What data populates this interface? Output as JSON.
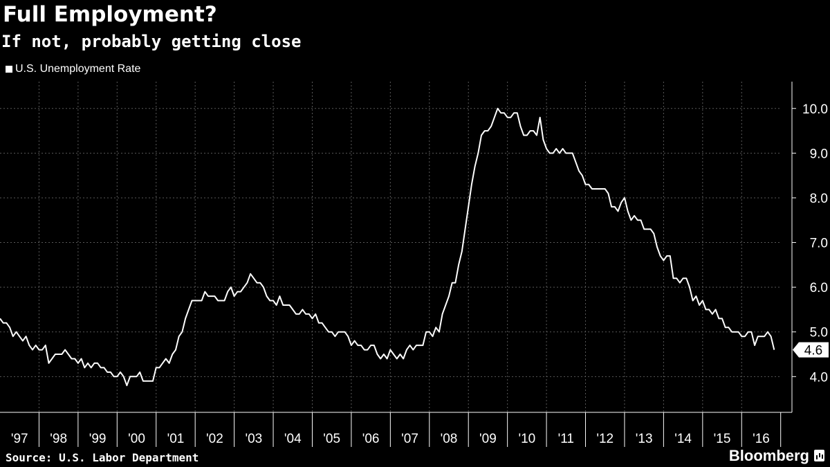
{
  "header": {
    "title": "Full Employment?",
    "subtitle": "If not, probably getting close"
  },
  "footer": {
    "source": "Source: U.S. Labor Department",
    "brand": "Bloomberg"
  },
  "colors": {
    "background": "#000000",
    "line": "#ffffff",
    "grid": "#5a5a5a"
  },
  "chart_data": {
    "type": "line",
    "title": "Full Employment?",
    "subtitle": "If not, probably getting close",
    "legend": {
      "position": "top-left",
      "entries": [
        "U.S. Unemployment Rate"
      ]
    },
    "grid": true,
    "y_axis_side": "right",
    "ylim": [
      3.2,
      10.6
    ],
    "yticks": [
      4.0,
      5.0,
      6.0,
      7.0,
      8.0,
      9.0,
      10.0
    ],
    "ytick_labels": [
      "4.0",
      "5.0",
      "6.0",
      "7.0",
      "8.0",
      "9.0",
      "10.0"
    ],
    "xlim": [
      1997.0,
      2016.97
    ],
    "xtick_labels": [
      "'97",
      "'98",
      "'99",
      "'00",
      "'01",
      "'02",
      "'03",
      "'04",
      "'05",
      "'06",
      "'07",
      "'08",
      "'09",
      "'10",
      "'11",
      "'12",
      "'13",
      "'14",
      "'15",
      "'16"
    ],
    "last_value_label": "4.6",
    "series": [
      {
        "name": "U.S. Unemployment Rate",
        "start": "1997-01",
        "frequency": "monthly",
        "values": [
          5.3,
          5.2,
          5.2,
          5.1,
          4.9,
          5.0,
          4.9,
          4.8,
          4.9,
          4.7,
          4.6,
          4.7,
          4.6,
          4.6,
          4.7,
          4.3,
          4.4,
          4.5,
          4.5,
          4.5,
          4.6,
          4.5,
          4.4,
          4.4,
          4.3,
          4.4,
          4.2,
          4.3,
          4.2,
          4.3,
          4.3,
          4.2,
          4.2,
          4.1,
          4.1,
          4.0,
          4.0,
          4.1,
          4.0,
          3.8,
          4.0,
          4.0,
          4.0,
          4.1,
          3.9,
          3.9,
          3.9,
          3.9,
          4.2,
          4.2,
          4.3,
          4.4,
          4.3,
          4.5,
          4.6,
          4.9,
          5.0,
          5.3,
          5.5,
          5.7,
          5.7,
          5.7,
          5.7,
          5.9,
          5.8,
          5.8,
          5.8,
          5.7,
          5.7,
          5.7,
          5.9,
          6.0,
          5.8,
          5.9,
          5.9,
          6.0,
          6.1,
          6.3,
          6.2,
          6.1,
          6.1,
          6.0,
          5.8,
          5.7,
          5.7,
          5.6,
          5.8,
          5.6,
          5.6,
          5.6,
          5.5,
          5.4,
          5.4,
          5.5,
          5.4,
          5.4,
          5.3,
          5.4,
          5.2,
          5.2,
          5.1,
          5.0,
          5.0,
          4.9,
          5.0,
          5.0,
          5.0,
          4.9,
          4.7,
          4.8,
          4.7,
          4.7,
          4.6,
          4.6,
          4.7,
          4.7,
          4.5,
          4.4,
          4.5,
          4.4,
          4.6,
          4.5,
          4.4,
          4.5,
          4.4,
          4.6,
          4.7,
          4.6,
          4.7,
          4.7,
          4.7,
          5.0,
          5.0,
          4.9,
          5.1,
          5.0,
          5.4,
          5.6,
          5.8,
          6.1,
          6.1,
          6.5,
          6.8,
          7.3,
          7.8,
          8.3,
          8.7,
          9.0,
          9.4,
          9.5,
          9.5,
          9.6,
          9.8,
          10.0,
          9.9,
          9.9,
          9.8,
          9.8,
          9.9,
          9.9,
          9.6,
          9.4,
          9.4,
          9.5,
          9.5,
          9.4,
          9.8,
          9.3,
          9.1,
          9.0,
          9.0,
          9.1,
          9.0,
          9.1,
          9.0,
          9.0,
          9.0,
          8.8,
          8.6,
          8.5,
          8.3,
          8.3,
          8.2,
          8.2,
          8.2,
          8.2,
          8.2,
          8.1,
          7.8,
          7.8,
          7.7,
          7.9,
          8.0,
          7.7,
          7.5,
          7.6,
          7.5,
          7.5,
          7.3,
          7.3,
          7.3,
          7.2,
          6.9,
          6.7,
          6.6,
          6.7,
          6.7,
          6.2,
          6.2,
          6.1,
          6.2,
          6.2,
          6.0,
          5.7,
          5.8,
          5.6,
          5.7,
          5.5,
          5.5,
          5.4,
          5.5,
          5.3,
          5.3,
          5.1,
          5.1,
          5.0,
          5.0,
          5.0,
          4.9,
          4.9,
          5.0,
          5.0,
          4.7,
          4.9,
          4.9,
          4.9,
          5.0,
          4.9,
          4.6
        ]
      }
    ]
  }
}
